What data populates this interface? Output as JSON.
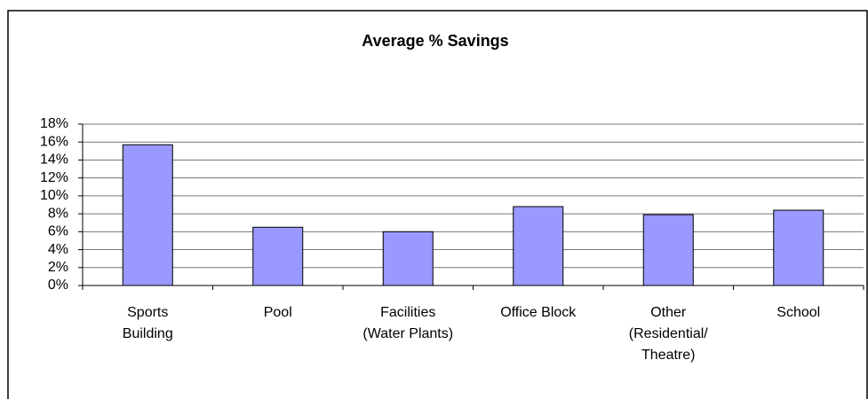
{
  "chart_data": {
    "type": "bar",
    "title": "Average % Savings",
    "categories": [
      "Sports\nBuilding",
      "Pool",
      "Facilities\n(Water Plants)",
      "Office Block",
      "Other\n(Residential/\nTheatre)",
      "School"
    ],
    "values": [
      15.7,
      6.5,
      6.0,
      8.8,
      7.9,
      8.4
    ],
    "color": "#9999ff",
    "ylim": [
      0,
      18
    ],
    "yticks": [
      {
        "value": 0,
        "label": "0%"
      },
      {
        "value": 2,
        "label": "2%"
      },
      {
        "value": 4,
        "label": "4%"
      },
      {
        "value": 6,
        "label": "6%"
      },
      {
        "value": 8,
        "label": "8%"
      },
      {
        "value": 10,
        "label": "10%"
      },
      {
        "value": 12,
        "label": "12%"
      },
      {
        "value": 14,
        "label": "14%"
      },
      {
        "value": 16,
        "label": "16%"
      },
      {
        "value": 18,
        "label": "18%"
      }
    ],
    "grid": true
  }
}
